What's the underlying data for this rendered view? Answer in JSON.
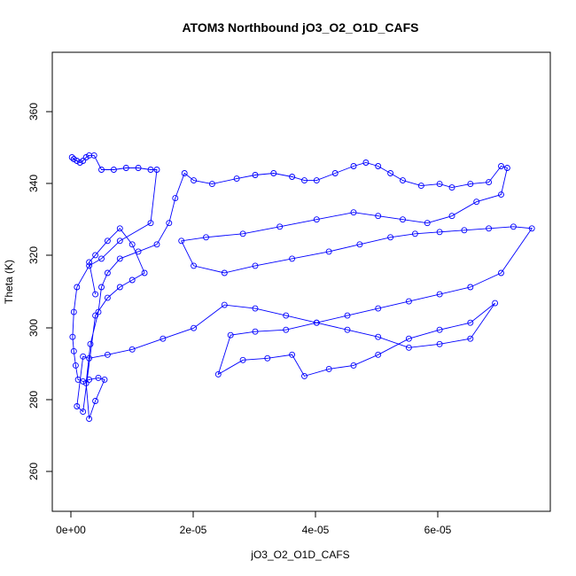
{
  "chart_data": {
    "type": "scatter",
    "title": "ATOM3 Northbound jO3_O2_O1D_CAFS",
    "xlabel": "jO3_O2_O1D_CAFS",
    "ylabel": "Theta (K)",
    "xlim": [
      -3e-06,
      7.8e-05
    ],
    "ylim": [
      249,
      378
    ],
    "x_ticks": [
      0,
      2e-05,
      4e-05,
      6e-05
    ],
    "x_tick_labels": [
      "0e+00",
      "2e-05",
      "4e-05",
      "6e-05"
    ],
    "y_ticks": [
      260,
      280,
      300,
      320,
      340,
      360
    ],
    "y_tick_labels": [
      "260",
      "280",
      "300",
      "320",
      "340",
      "360"
    ],
    "grid": false,
    "legend": "none",
    "series": [
      {
        "color": "#0000ff",
        "marker": "open-circle",
        "connected": true,
        "x": [
          2e-07,
          5e-07,
          1e-06,
          1.5e-06,
          2e-06,
          2.5e-06,
          3e-06,
          3.8e-06,
          5e-06,
          7e-06,
          9e-06,
          1.1e-05,
          1.3e-05,
          1.4e-05,
          1.3e-05,
          8e-06,
          5e-06,
          3e-06,
          1e-06,
          5e-07,
          3e-07,
          5e-07,
          8e-07,
          1.2e-06,
          2e-06,
          3e-06,
          4.5e-06,
          5.5e-06,
          4e-06,
          3e-06,
          2.5e-06,
          3.2e-06,
          4.5e-06,
          5e-06,
          6e-06,
          8e-06,
          1.1e-05,
          1.4e-05,
          1.6e-05,
          1.7e-05,
          1.85e-05,
          2e-05,
          2.3e-05,
          2.7e-05,
          3e-05,
          3.3e-05,
          3.6e-05,
          3.8e-05,
          4e-05,
          4.3e-05,
          4.6e-05,
          4.8e-05,
          5e-05,
          5.2e-05,
          5.4e-05,
          5.7e-05,
          6e-05,
          6.2e-05,
          6.5e-05,
          6.8e-05,
          7e-05,
          7.1e-05,
          7e-05,
          6.6e-05,
          6.2e-05,
          5.8e-05,
          5.4e-05,
          5e-05,
          4.6e-05,
          4e-05,
          3.4e-05,
          2.8e-05,
          2.2e-05,
          1.8e-05,
          2e-05,
          2.5e-05,
          3e-05,
          3.6e-05,
          4.2e-05,
          4.7e-05,
          5.2e-05,
          5.6e-05,
          6e-05,
          6.4e-05,
          6.8e-05,
          7.2e-05,
          7.5e-05,
          7e-05,
          6.5e-05,
          6e-05,
          5.5e-05,
          5e-05,
          4.5e-05,
          4e-05,
          3.5e-05,
          3e-05,
          2.6e-05,
          2.4e-05,
          2.8e-05,
          3.2e-05,
          3.6e-05,
          3.8e-05,
          4.2e-05,
          4.6e-05,
          5e-05,
          5.5e-05,
          6e-05,
          6.5e-05,
          6.9e-05,
          6.5e-05,
          6e-05,
          5.5e-05,
          5e-05,
          4.5e-05,
          4e-05,
          3.5e-05,
          3e-05,
          2.5e-05,
          2e-05,
          1.5e-05,
          1e-05,
          6e-06,
          3e-06,
          2e-06,
          1e-06,
          2e-06,
          4e-06,
          6e-06,
          8e-06,
          1e-05,
          1.2e-05,
          1e-05,
          8e-06,
          6e-06,
          4e-06,
          3e-06,
          4e-06
        ],
        "y": [
          348.5,
          348.0,
          347.5,
          347.0,
          347.5,
          348.5,
          349.0,
          349.0,
          345.0,
          345.0,
          345.5,
          345.5,
          345.0,
          345.0,
          330.0,
          325.0,
          320.0,
          318.0,
          312.0,
          305.0,
          298.0,
          294.0,
          290.0,
          286.0,
          285.5,
          286.0,
          286.5,
          286.0,
          280.0,
          275.0,
          285.0,
          296.0,
          305.0,
          312.0,
          316.0,
          320.0,
          322.0,
          324.0,
          330.0,
          337.0,
          344.0,
          342.0,
          341.0,
          342.5,
          343.5,
          344.0,
          343.0,
          342.0,
          342.0,
          344.0,
          346.0,
          347.0,
          346.0,
          344.0,
          342.0,
          340.5,
          341.0,
          340.0,
          341.0,
          341.5,
          346.0,
          345.5,
          338.0,
          336.0,
          332.0,
          330.0,
          331.0,
          332.0,
          333.0,
          331.0,
          329.0,
          327.0,
          326.0,
          325.0,
          318.0,
          316.0,
          318.0,
          320.0,
          322.0,
          324.0,
          326.0,
          327.0,
          327.5,
          328.0,
          328.5,
          329.0,
          328.5,
          316.0,
          312.0,
          310.0,
          308.0,
          306.0,
          304.0,
          302.0,
          300.0,
          299.5,
          298.5,
          287.5,
          291.5,
          292.0,
          293.0,
          287.0,
          289.0,
          290.0,
          293.0,
          297.5,
          300.0,
          302.0,
          307.5,
          297.5,
          296.0,
          295.0,
          298.0,
          300.0,
          302.0,
          304.0,
          306.0,
          307.0,
          300.5,
          297.5,
          294.5,
          293.0,
          292.0,
          292.5,
          278.5,
          277.0,
          304.0,
          309.0,
          312.0,
          314.0,
          316.0,
          324.0,
          328.5,
          325.0,
          321.0,
          319.0,
          310.0
        ]
      }
    ]
  }
}
